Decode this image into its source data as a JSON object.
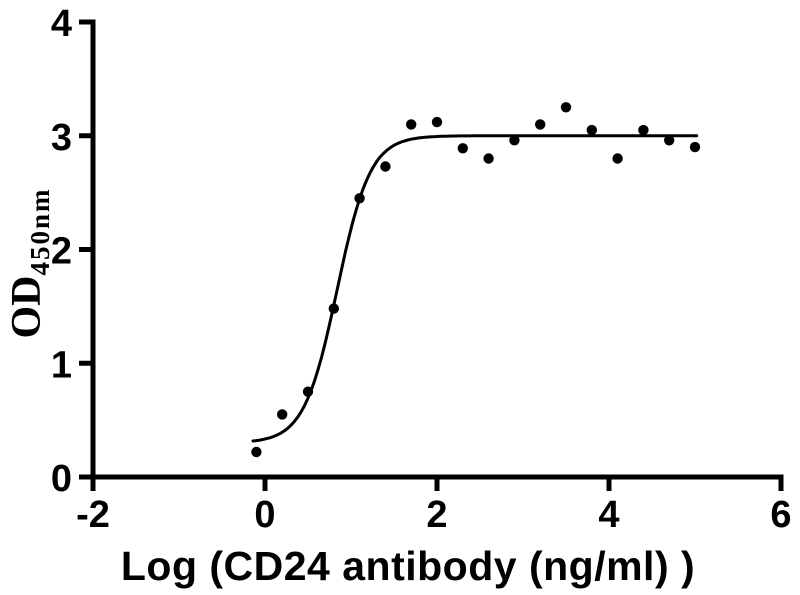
{
  "figure": {
    "background_color": "#ffffff",
    "ink_color": "#000000",
    "xlabel": "Log (CD24 antibody (ng/ml) )",
    "ylabel_main": "OD",
    "ylabel_subscript": "450nm"
  },
  "chart_data": {
    "type": "scatter",
    "title": "",
    "xlabel": "Log (CD24 antibody (ng/ml) )",
    "ylabel": "OD450nm",
    "xlim": [
      -2,
      6
    ],
    "ylim": [
      0,
      4
    ],
    "x_ticks": [
      -2,
      0,
      2,
      4,
      6
    ],
    "y_ticks": [
      0,
      1,
      2,
      3,
      4
    ],
    "grid": false,
    "legend": "none",
    "marker_color": "#000000",
    "curve_color": "#000000",
    "points": {
      "x": [
        -0.1,
        0.2,
        0.5,
        0.8,
        1.1,
        1.4,
        1.7,
        2.0,
        2.3,
        2.6,
        2.9,
        3.2,
        3.5,
        3.8,
        4.1,
        4.4,
        4.7,
        5.0
      ],
      "y": [
        0.22,
        0.55,
        0.75,
        1.48,
        2.45,
        2.73,
        3.1,
        3.12,
        2.89,
        2.8,
        2.96,
        3.1,
        3.25,
        3.05,
        2.8,
        3.05,
        2.96,
        2.9
      ]
    },
    "fit_curve": {
      "model": "4PL",
      "bottom": 0.3,
      "top": 3.0,
      "log_ec50": 0.84,
      "hill": 2.26,
      "x_start": -0.14,
      "x_end": 5.03
    }
  }
}
